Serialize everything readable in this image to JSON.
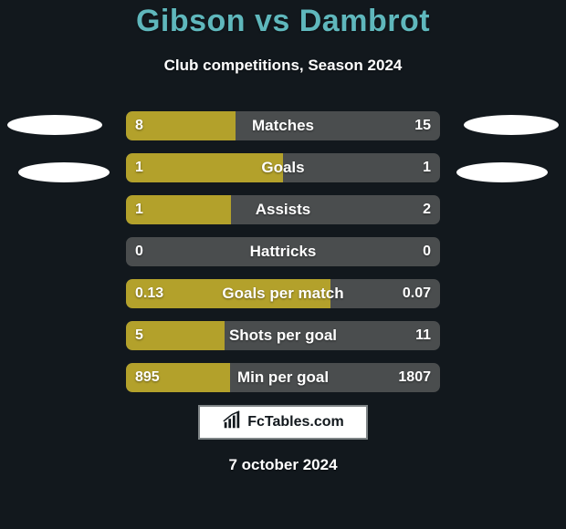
{
  "background_color": "#12181d",
  "title": {
    "text": "Gibson vs Dambrot",
    "color": "#5fb7bc",
    "fontsize": 34
  },
  "subtitle": {
    "text": "Club competitions, Season 2024",
    "color": "#ffffff",
    "fontsize": 17
  },
  "ellipses": {
    "fill": "#ffffff"
  },
  "bars": {
    "track_color": "#4a4d4e",
    "fill_color": "#b3a12b",
    "label_color": "#ffffff",
    "value_color": "#ffffff",
    "rows": [
      {
        "label": "Matches",
        "left": "8",
        "right": "15",
        "fill_pct": 34.8
      },
      {
        "label": "Goals",
        "left": "1",
        "right": "1",
        "fill_pct": 50.0
      },
      {
        "label": "Assists",
        "left": "1",
        "right": "2",
        "fill_pct": 33.3
      },
      {
        "label": "Hattricks",
        "left": "0",
        "right": "0",
        "fill_pct": 0.0
      },
      {
        "label": "Goals per match",
        "left": "0.13",
        "right": "0.07",
        "fill_pct": 65.0
      },
      {
        "label": "Shots per goal",
        "left": "5",
        "right": "11",
        "fill_pct": 31.3
      },
      {
        "label": "Min per goal",
        "left": "895",
        "right": "1807",
        "fill_pct": 33.1
      }
    ]
  },
  "watermark": {
    "text": "FcTables.com",
    "text_color": "#12181d",
    "box_bg": "#ffffff",
    "box_border": "#7e8486"
  },
  "date": {
    "text": "7 october 2024",
    "color": "#ffffff"
  }
}
